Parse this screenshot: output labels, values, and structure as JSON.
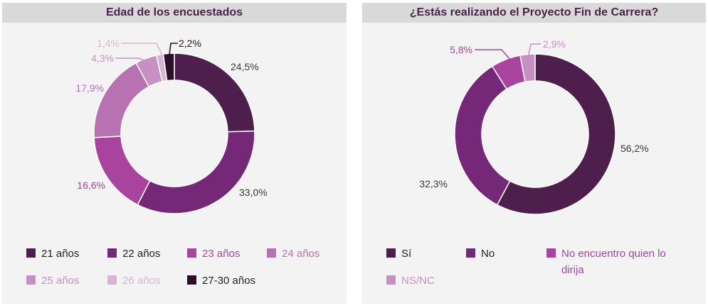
{
  "chart_data": [
    {
      "type": "pie",
      "title": "Edad de los encuestados",
      "categories": [
        "21 años",
        "22 años",
        "23 años",
        "24 años",
        "25 años",
        "26 años",
        "27-30 años"
      ],
      "values": [
        24.5,
        33.0,
        16.6,
        17.9,
        4.3,
        1.4,
        2.2
      ],
      "labels": [
        "24,5%",
        "33,0%",
        "16,6%",
        "17,9%",
        "4,3%",
        "1,4%",
        "2,2%"
      ],
      "colors": [
        "#4e1f4d",
        "#752878",
        "#a9449e",
        "#b872b2",
        "#c691c2",
        "#d7b6d5",
        "#2a1028"
      ],
      "legend_position": "bottom"
    },
    {
      "type": "pie",
      "title": "¿Estás realizando el Proyecto Fin de Carrera?",
      "categories": [
        "Sí",
        "No",
        "No encuentro quien lo dirija",
        "NS/NC"
      ],
      "values": [
        56.2,
        32.3,
        5.8,
        2.9
      ],
      "labels": [
        "56,2%",
        "32,3%",
        "5,8%",
        "2,9%"
      ],
      "colors": [
        "#4e1f4d",
        "#752878",
        "#a9449e",
        "#c691c2"
      ],
      "legend_position": "bottom"
    }
  ]
}
